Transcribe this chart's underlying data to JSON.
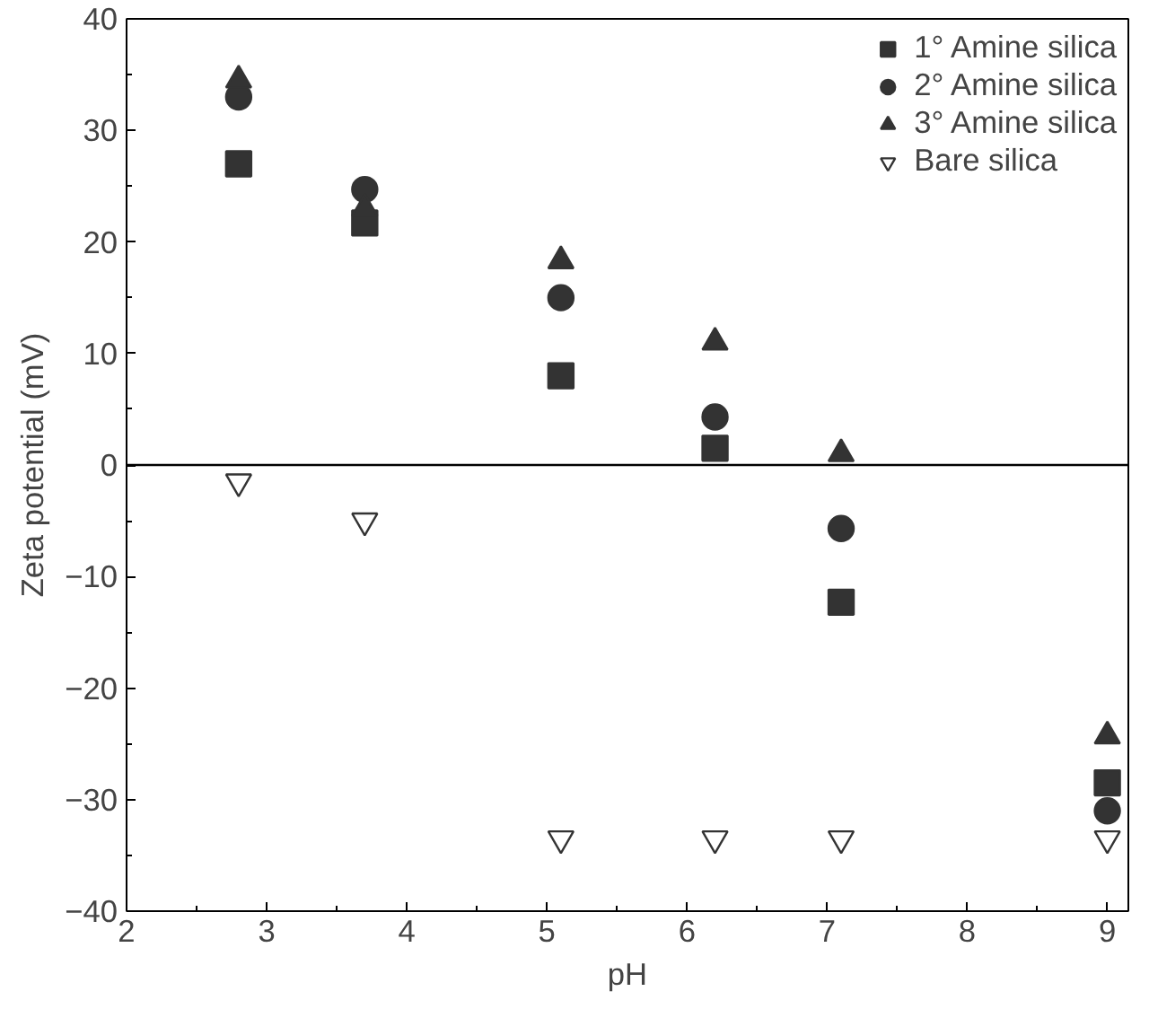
{
  "chart_data": {
    "type": "scatter",
    "xlabel": "pH",
    "ylabel": "Zeta potential (mV)",
    "x": [
      2.8,
      3.7,
      5.1,
      6.2,
      7.1,
      9.0
    ],
    "series": [
      {
        "name": "1° Amine silica",
        "color": "#333333",
        "marker": "square",
        "values": [
          27,
          21.7,
          8,
          1.5,
          -12.3,
          -28.5
        ]
      },
      {
        "name": "2° Amine silica",
        "color": "#333333",
        "marker": "circle",
        "values": [
          33,
          24.7,
          15,
          4.3,
          -5.7,
          -31
        ]
      },
      {
        "name": "3° Amine silica",
        "color": "#333333",
        "marker": "triangle",
        "values": [
          34.5,
          23,
          18.3,
          11,
          1,
          -24.3
        ]
      },
      {
        "name": "Bare silica",
        "color": "#ffffff",
        "marker": "triangle",
        "values": [
          -1.5,
          -5,
          -33.5,
          -33.5,
          -33.5,
          -33.5
        ]
      }
    ],
    "xlim": [
      2,
      9.15
    ],
    "ylim": [
      -40,
      40
    ],
    "xticks": [
      2,
      3,
      4,
      5,
      6,
      7,
      8,
      9
    ],
    "yticks": [
      -40,
      -30,
      -20,
      -10,
      0,
      10,
      20,
      30,
      40
    ],
    "ref_lines": [
      {
        "axis": "y",
        "value": 0,
        "color": "#000000"
      }
    ],
    "grid": false,
    "legend": "top right"
  }
}
